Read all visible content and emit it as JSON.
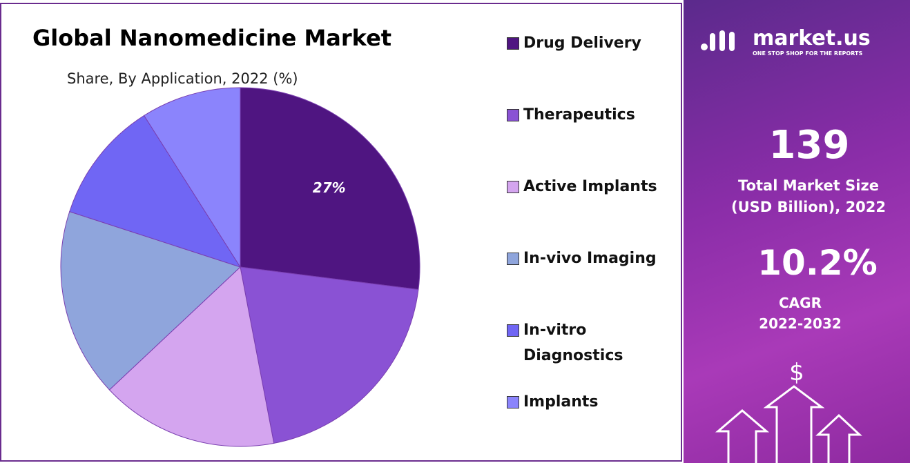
{
  "chart_data": {
    "type": "pie",
    "title": "Global Nanomedicine Market",
    "subtitle": "Share, By Application, 2022 (%)",
    "categories": [
      "Drug Delivery",
      "Therapeutics",
      "Active Implants",
      "In-vivo Imaging",
      "In-vitro Diagnostics",
      "Implants"
    ],
    "values": [
      27,
      20,
      16,
      17,
      11,
      9
    ],
    "value_labels": [
      "27%",
      null,
      null,
      null,
      null,
      null
    ],
    "colors": [
      "#4f1581",
      "#8a52d4",
      "#d4a5ef",
      "#8fa5dc",
      "#7066f4",
      "#8b84fc"
    ],
    "legend": "right"
  },
  "panel": {
    "brand": "market.us",
    "tagline": "ONE STOP SHOP FOR THE REPORTS",
    "market_size": "139",
    "market_size_label": "Total Market Size (USD Billion), 2022",
    "cagr": "10.2%",
    "cagr_label": "CAGR 2022-2032",
    "icon": "$"
  }
}
